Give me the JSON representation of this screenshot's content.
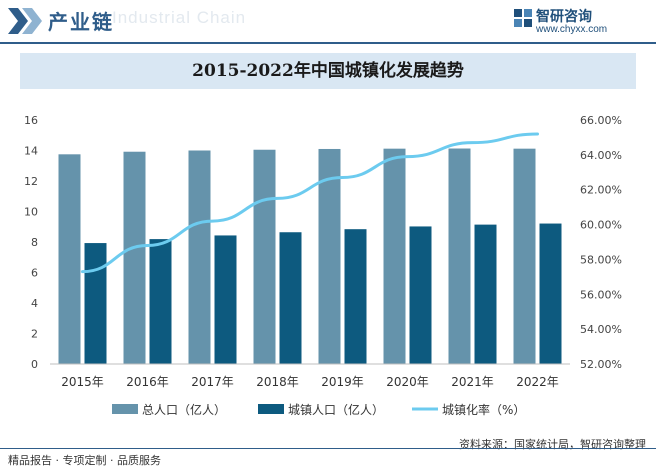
{
  "header": {
    "title": "产业链",
    "watermark": "Industrial Chain",
    "brand_name": "智研咨询",
    "brand_url": "www.chyxx.com"
  },
  "footer": {
    "left": "精品报告 · 专项定制 · 品质服务",
    "right": "资料来源：国家统计局，智研咨询整理"
  },
  "chart_data": {
    "type": "bar",
    "title": "2015-2022年中国城镇化发展趋势",
    "categories": [
      "2015年",
      "2016年",
      "2017年",
      "2018年",
      "2019年",
      "2020年",
      "2021年",
      "2022年"
    ],
    "series": [
      {
        "name": "总人口（亿人）",
        "type": "bar",
        "axis": "left",
        "color": "#6593ab",
        "values": [
          13.75,
          13.92,
          14.0,
          14.05,
          14.1,
          14.12,
          14.13,
          14.12
        ]
      },
      {
        "name": "城镇人口（亿人）",
        "type": "bar",
        "axis": "left",
        "color": "#0d5a7f",
        "values": [
          7.93,
          8.19,
          8.43,
          8.64,
          8.84,
          9.02,
          9.14,
          9.21
        ]
      },
      {
        "name": "城镇化率（%）",
        "type": "line",
        "axis": "right",
        "color": "#6ccbef",
        "values": [
          57.3,
          58.8,
          60.2,
          61.5,
          62.7,
          63.9,
          64.7,
          65.2
        ]
      }
    ],
    "y_left": {
      "min": 0,
      "max": 16,
      "ticks": [
        "0",
        "2",
        "4",
        "6",
        "8",
        "10",
        "12",
        "14",
        "16"
      ]
    },
    "y_right": {
      "min": 52,
      "max": 66,
      "ticks": [
        "52.00%",
        "54.00%",
        "56.00%",
        "58.00%",
        "60.00%",
        "62.00%",
        "64.00%",
        "66.00%"
      ]
    },
    "grid": false,
    "legend": "bottom"
  }
}
